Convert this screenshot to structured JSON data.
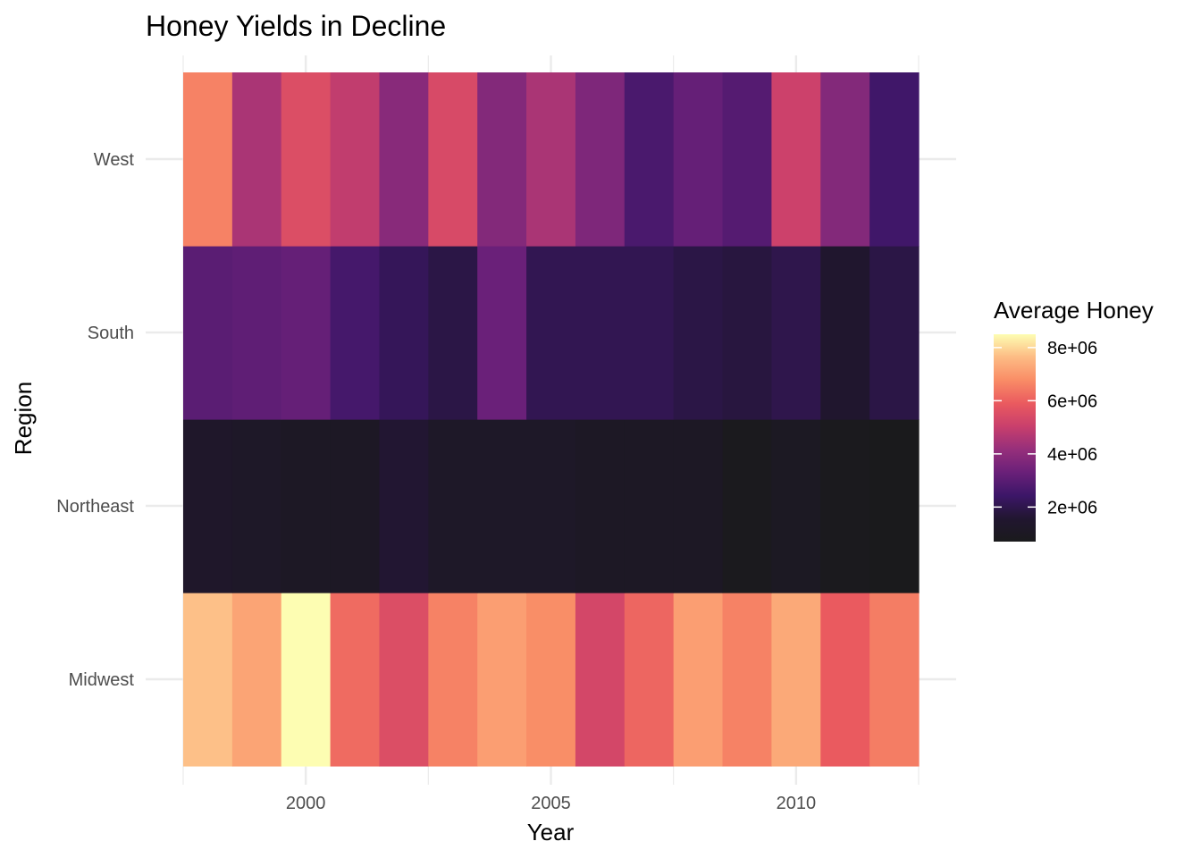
{
  "chart_data": {
    "type": "heatmap",
    "title": "Honey Yields in Decline",
    "xlabel": "Year",
    "ylabel": "Region",
    "x": [
      1998,
      1999,
      2000,
      2001,
      2002,
      2003,
      2004,
      2005,
      2006,
      2007,
      2008,
      2009,
      2010,
      2011,
      2012
    ],
    "x_ticks": [
      2000,
      2005,
      2010
    ],
    "x_tick_labels": [
      "2000",
      "2005",
      "2010"
    ],
    "xlim": [
      1997.5,
      2012.5
    ],
    "categories": [
      "Midwest",
      "Northeast",
      "South",
      "West"
    ],
    "values": {
      "West": [
        6600000,
        4500000,
        5500000,
        4900000,
        3900000,
        5400000,
        3800000,
        4500000,
        3700000,
        2700000,
        3200000,
        2900000,
        5100000,
        3800000,
        2500000
      ],
      "South": [
        3000000,
        3100000,
        3200000,
        2600000,
        2200000,
        1900000,
        3300000,
        2100000,
        2100000,
        2100000,
        1900000,
        1800000,
        2000000,
        1500000,
        1900000
      ],
      "Northeast": [
        1300000,
        1200000,
        1100000,
        1100000,
        1600000,
        1200000,
        1200000,
        1200000,
        1100000,
        1100000,
        1100000,
        800000,
        1000000,
        800000,
        700000
      ],
      "Midwest": [
        7700000,
        7200000,
        8500000,
        6200000,
        5500000,
        6600000,
        7100000,
        6800000,
        5300000,
        6100000,
        7100000,
        6600000,
        7300000,
        5900000,
        6500000
      ]
    },
    "legend": {
      "title": "Average Honey",
      "breaks": [
        2000000,
        4000000,
        6000000,
        8000000
      ],
      "labels": [
        "2e+06",
        "4e+06",
        "6e+06",
        "8e+06"
      ],
      "limits": [
        700000,
        8500000
      ],
      "position": "right"
    },
    "colormap": "magma",
    "color_stops": [
      "#1a1a1c",
      "#211630",
      "#3c1668",
      "#6a2079",
      "#962f7b",
      "#c93f6c",
      "#ea5a5f",
      "#f98c66",
      "#fdbb84",
      "#fdfdb2"
    ],
    "grid": true
  }
}
